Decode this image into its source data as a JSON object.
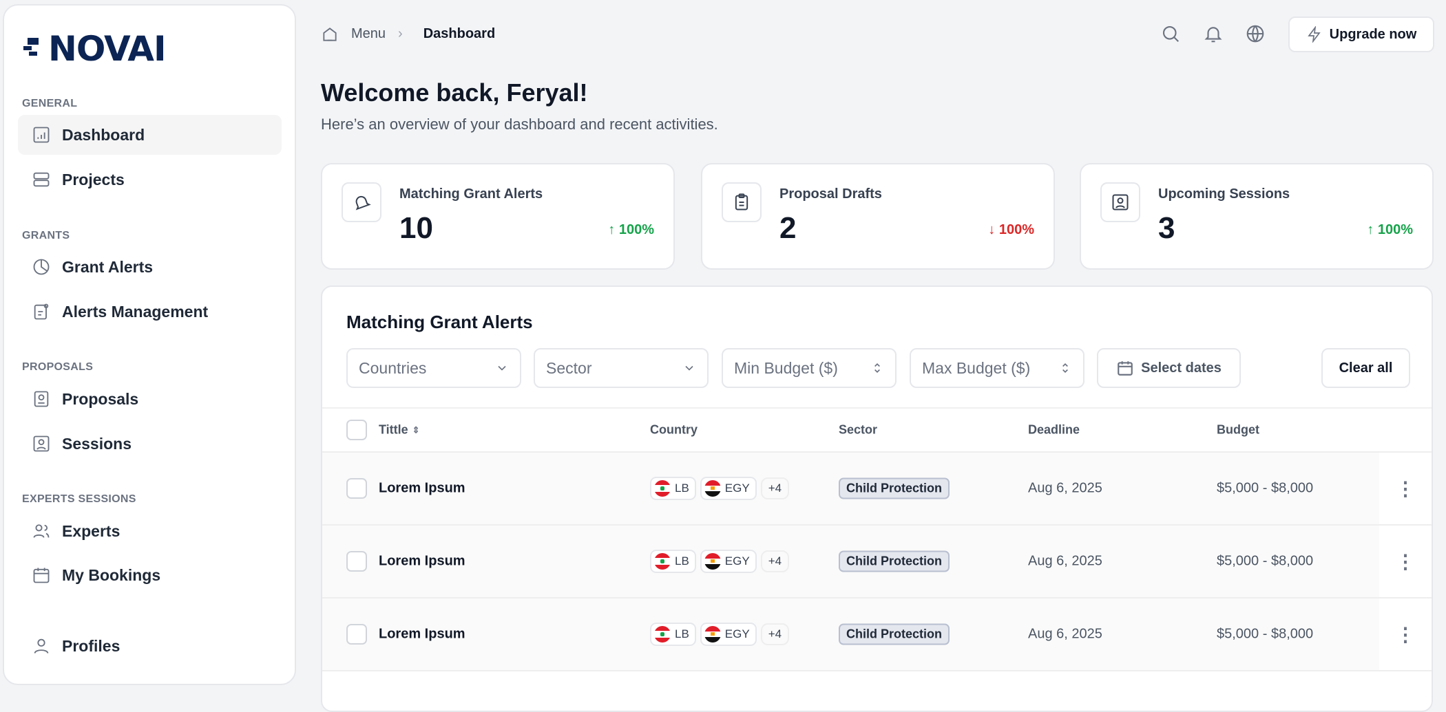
{
  "brand": {
    "logo_text": "NOVAI",
    "color": "#0b2454"
  },
  "sidebar": {
    "sections": [
      {
        "title": "GENERAL",
        "items": [
          {
            "label": "Dashboard",
            "icon": "bar-chart-icon",
            "active": true
          },
          {
            "label": "Projects",
            "icon": "server-icon"
          }
        ]
      },
      {
        "title": "GRANTS",
        "items": [
          {
            "label": "Grant Alerts",
            "icon": "pie-chart-icon"
          },
          {
            "label": "Alerts Management",
            "icon": "file-alert-icon"
          }
        ]
      },
      {
        "title": "PROPOSALS",
        "items": [
          {
            "label": "Proposals",
            "icon": "proposal-icon"
          },
          {
            "label": "Sessions",
            "icon": "user-square-icon"
          }
        ]
      },
      {
        "title": "EXPERTS SESSIONS",
        "items": [
          {
            "label": "Experts",
            "icon": "users-icon"
          },
          {
            "label": "My Bookings",
            "icon": "calendar-icon"
          }
        ]
      }
    ],
    "profiles": "Profiles"
  },
  "header": {
    "breadcrumb": [
      "Menu",
      "Dashboard"
    ],
    "upgrade": "Upgrade now"
  },
  "welcome": {
    "title": "Welcome back, Feryal!",
    "subtitle": "Here’s an overview of your dashboard and recent activities."
  },
  "stats": [
    {
      "label": "Matching Grant Alerts",
      "value": "10",
      "change": "100%",
      "direction": "up",
      "icon": "bell-icon"
    },
    {
      "label": "Proposal Drafts",
      "value": "2",
      "change": "100%",
      "direction": "down",
      "icon": "clipboard-icon"
    },
    {
      "label": "Upcoming Sessions",
      "value": "3",
      "change": "100%",
      "direction": "up",
      "icon": "user-square-icon"
    }
  ],
  "alerts": {
    "title": "Matching Grant Alerts",
    "filters": {
      "countries": "Countries",
      "sector": "Sector",
      "min_budget": "Min Budget ($)",
      "max_budget": "Max Budget ($)",
      "dates": "Select dates",
      "clear": "Clear all"
    },
    "columns": {
      "title": "Tittle",
      "country": "Country",
      "sector": "Sector",
      "deadline": "Deadline",
      "budget": "Budget"
    },
    "rows": [
      {
        "title": "Lorem Ipsum",
        "countries": [
          "LB",
          "EGY"
        ],
        "more": "+4",
        "sector": "Child Protection",
        "deadline": "Aug 6, 2025",
        "budget": "$5,000 - $8,000"
      },
      {
        "title": "Lorem Ipsum",
        "countries": [
          "LB",
          "EGY"
        ],
        "more": "+4",
        "sector": "Child Protection",
        "deadline": "Aug 6, 2025",
        "budget": "$5,000 - $8,000"
      },
      {
        "title": "Lorem Ipsum",
        "countries": [
          "LB",
          "EGY"
        ],
        "more": "+4",
        "sector": "Child Protection",
        "deadline": "Aug 6, 2025",
        "budget": "$5,000 - $8,000"
      }
    ]
  }
}
